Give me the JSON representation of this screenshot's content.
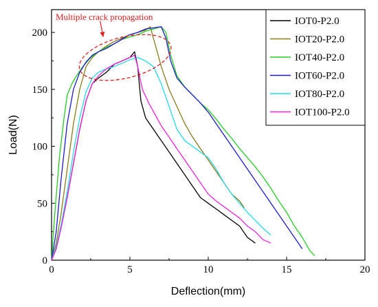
{
  "chart_data": {
    "type": "line",
    "title": "",
    "xlabel": "Deflection(mm)",
    "ylabel": "Load(N)",
    "xlim": [
      0,
      20
    ],
    "ylim": [
      0,
      220
    ],
    "x_ticks": [
      0,
      5,
      10,
      15,
      20
    ],
    "y_ticks": [
      0,
      50,
      100,
      150,
      200
    ],
    "grid": false,
    "legend_position": "top-right",
    "annotation": {
      "text": "Multiple crack propagation",
      "color": "#e02020",
      "ellipse_center": [
        4.7,
        178
      ],
      "ellipse_radius_x": 3.0,
      "ellipse_radius_y": 18,
      "ellipse_rotation_deg": -14,
      "arrow_from": [
        3.1,
        210
      ],
      "arrow_to": [
        3.3,
        196
      ]
    },
    "series": [
      {
        "name": "IOT0-P2.0",
        "color": "#000000",
        "x": [
          0,
          0.3,
          0.6,
          1.0,
          1.4,
          1.8,
          2.2,
          2.6,
          3.0,
          3.5,
          4.0,
          4.5,
          5.0,
          5.3,
          5.5,
          5.7,
          6.0,
          6.5,
          7.0,
          7.5,
          8.0,
          8.5,
          9.0,
          9.5,
          10.0,
          10.5,
          11.0,
          11.5,
          12.0,
          12.5,
          13.0
        ],
        "y": [
          0,
          10,
          28,
          55,
          85,
          115,
          140,
          155,
          160,
          165,
          172,
          175,
          178,
          183,
          170,
          140,
          125,
          115,
          105,
          95,
          85,
          75,
          65,
          55,
          50,
          45,
          40,
          35,
          30,
          20,
          15
        ]
      },
      {
        "name": "IOT20-P2.0",
        "color": "#8b7a1a",
        "x": [
          0,
          0.3,
          0.6,
          1.0,
          1.4,
          1.8,
          2.2,
          2.6,
          3.0,
          3.5,
          4.0,
          4.5,
          5.0,
          5.5,
          6.0,
          6.3,
          6.6,
          7.0,
          7.5,
          8.0,
          8.5,
          9.0,
          9.5,
          10.0,
          10.5,
          11.0,
          11.5,
          12.0,
          12.3
        ],
        "y": [
          0,
          15,
          40,
          80,
          120,
          150,
          170,
          178,
          183,
          188,
          192,
          195,
          198,
          200,
          202,
          205,
          190,
          170,
          150,
          135,
          120,
          108,
          98,
          88,
          78,
          68,
          58,
          52,
          46
        ]
      },
      {
        "name": "IOT40-P2.0",
        "color": "#22cc22",
        "x": [
          0,
          0.2,
          0.5,
          0.8,
          1.0,
          1.3,
          1.6,
          2.0,
          2.5,
          3.0,
          3.5,
          4.0,
          4.5,
          5.0,
          5.5,
          6.0,
          6.5,
          7.0,
          7.3,
          7.6,
          8.0,
          8.5,
          9.0,
          9.5,
          10.0,
          10.5,
          11.0,
          11.5,
          12.0,
          12.5,
          13.0,
          13.5,
          14.0,
          14.5,
          15.0,
          15.5,
          16.0,
          16.5,
          16.8
        ],
        "y": [
          0,
          40,
          90,
          125,
          145,
          155,
          162,
          170,
          178,
          183,
          187,
          190,
          194,
          196,
          198,
          201,
          203,
          205,
          200,
          180,
          162,
          152,
          145,
          138,
          132,
          124,
          115,
          107,
          98,
          90,
          82,
          73,
          63,
          52,
          42,
          30,
          20,
          8,
          4
        ]
      },
      {
        "name": "IOT60-P2.0",
        "color": "#1a1acc",
        "x": [
          0,
          0.3,
          0.6,
          1.0,
          1.4,
          1.8,
          2.2,
          2.6,
          3.0,
          3.5,
          4.0,
          4.5,
          5.0,
          5.5,
          6.0,
          6.5,
          7.0,
          7.3,
          7.6,
          8.0,
          8.5,
          9.0,
          9.5,
          10.0,
          10.5,
          11.0,
          11.5,
          12.0,
          12.5,
          13.0,
          13.5,
          14.0,
          14.5,
          15.0,
          15.5,
          16.0
        ],
        "y": [
          0,
          25,
          70,
          120,
          150,
          165,
          174,
          180,
          183,
          186,
          190,
          194,
          198,
          200,
          203,
          204,
          205,
          195,
          175,
          160,
          152,
          145,
          138,
          130,
          120,
          110,
          100,
          90,
          80,
          70,
          60,
          50,
          40,
          30,
          20,
          10
        ]
      },
      {
        "name": "IOT80-P2.0",
        "color": "#22d8e8",
        "x": [
          0,
          0.3,
          0.6,
          1.0,
          1.4,
          1.8,
          2.2,
          2.6,
          3.0,
          3.5,
          4.0,
          4.5,
          5.0,
          5.5,
          6.0,
          6.5,
          7.0,
          7.5,
          8.0,
          8.5,
          9.0,
          9.5,
          10.0,
          10.5,
          11.0,
          11.5,
          12.0,
          12.5,
          13.0,
          13.5,
          14.0
        ],
        "y": [
          0,
          12,
          30,
          60,
          95,
          125,
          148,
          160,
          165,
          168,
          170,
          173,
          176,
          178,
          175,
          170,
          155,
          135,
          115,
          105,
          100,
          95,
          90,
          80,
          68,
          58,
          50,
          42,
          35,
          28,
          22
        ]
      },
      {
        "name": "IOT100-P2.0",
        "color": "#ee22dd",
        "x": [
          0,
          0.3,
          0.6,
          1.0,
          1.4,
          1.8,
          2.2,
          2.6,
          3.0,
          3.5,
          4.0,
          4.5,
          5.0,
          5.3,
          5.5,
          5.8,
          6.2,
          6.6,
          7.0,
          7.5,
          8.0,
          8.5,
          9.0,
          9.5,
          10.0,
          10.5,
          11.0,
          11.5,
          12.0,
          12.5,
          13.0,
          13.5,
          14.0
        ],
        "y": [
          0,
          10,
          28,
          55,
          85,
          115,
          140,
          155,
          162,
          168,
          172,
          175,
          178,
          180,
          170,
          150,
          138,
          128,
          118,
          108,
          98,
          88,
          78,
          68,
          58,
          52,
          47,
          42,
          37,
          30,
          25,
          18,
          15
        ]
      }
    ]
  }
}
